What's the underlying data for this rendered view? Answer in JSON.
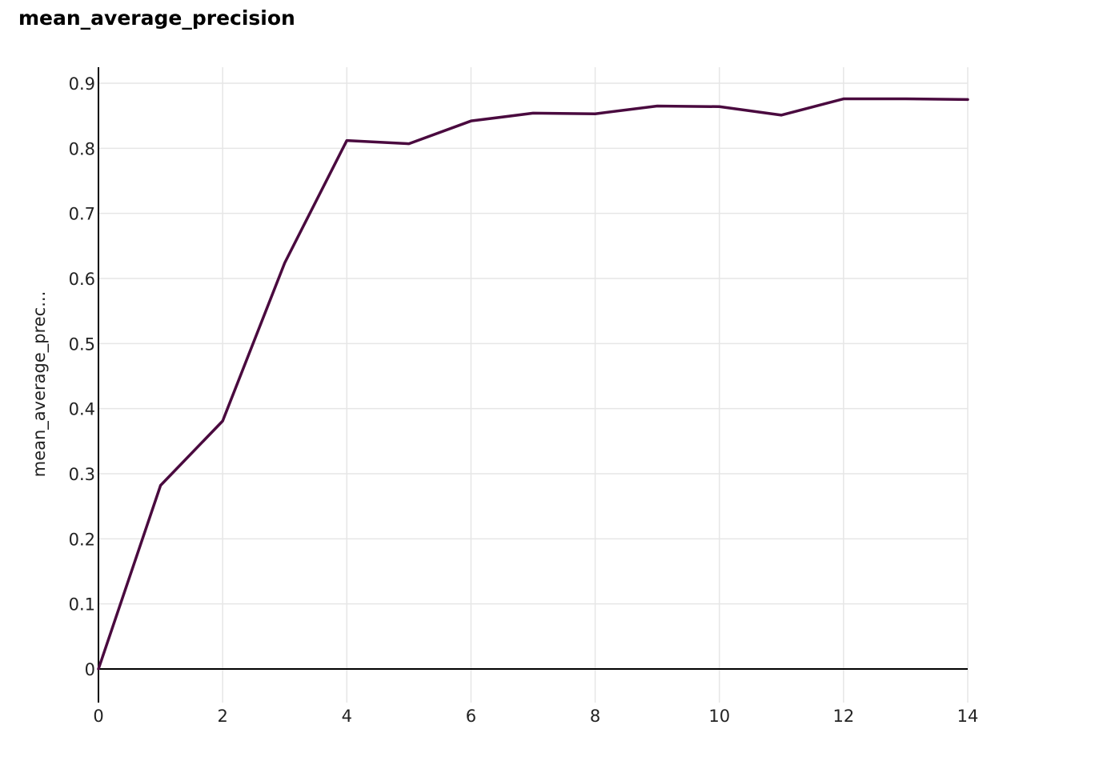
{
  "chart_data": {
    "type": "line",
    "title": "mean_average_precision",
    "xlabel": "",
    "ylabel": "mean_average_prec...",
    "xlim": [
      0,
      14
    ],
    "ylim": [
      0,
      0.9
    ],
    "x_ticks": [
      0,
      2,
      4,
      6,
      8,
      10,
      12,
      14
    ],
    "y_ticks": [
      0,
      0.1,
      0.2,
      0.3,
      0.4,
      0.5,
      0.6,
      0.7,
      0.8,
      0.9
    ],
    "grid": true,
    "series": [
      {
        "color": "#4a0a3f",
        "x": [
          0,
          1,
          2,
          3,
          4,
          5,
          6,
          7,
          8,
          9,
          10,
          11,
          12,
          13,
          14
        ],
        "values": [
          0,
          0.282,
          0.381,
          0.624,
          0.812,
          0.807,
          0.842,
          0.854,
          0.853,
          0.865,
          0.864,
          0.851,
          0.876,
          0.876,
          0.875
        ]
      }
    ]
  }
}
